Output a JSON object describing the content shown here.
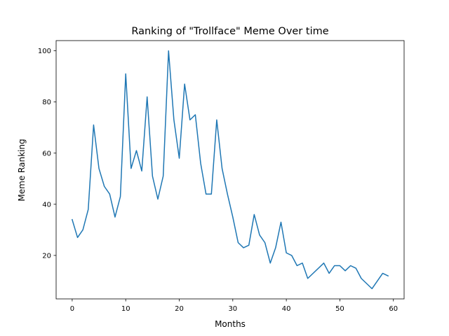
{
  "chart_data": {
    "type": "line",
    "title": "Ranking of \"Trollface\" Meme Over time",
    "xlabel": "Months",
    "ylabel": "Meme Ranking",
    "xlim": [
      -3,
      62
    ],
    "ylim": [
      3,
      104
    ],
    "xticks": [
      0,
      10,
      20,
      30,
      40,
      50,
      60
    ],
    "yticks": [
      20,
      40,
      60,
      80,
      100
    ],
    "grid": false,
    "line_color": "#1f77b4",
    "series": [
      {
        "x": [
          0,
          1,
          2,
          3,
          4,
          5,
          6,
          7,
          8,
          9,
          10,
          11,
          12,
          13,
          14,
          15,
          16,
          17,
          18,
          19,
          20,
          21,
          22,
          23,
          24,
          25,
          26,
          27,
          28,
          29,
          30,
          31,
          32,
          33,
          34,
          35,
          36,
          37,
          38,
          39,
          40,
          41,
          42,
          43,
          44,
          47,
          48,
          49,
          50,
          51,
          52,
          53,
          54,
          56,
          58,
          59
        ],
        "values": [
          34,
          27,
          30,
          38,
          71,
          54,
          47,
          44,
          35,
          43,
          91,
          54,
          61,
          53,
          82,
          51,
          42,
          51,
          100,
          73,
          58,
          87,
          73,
          75,
          56,
          44,
          44,
          73,
          54,
          44,
          35,
          25,
          23,
          24,
          36,
          28,
          25,
          17,
          23,
          33,
          21,
          20,
          16,
          17,
          11,
          17,
          13,
          16,
          16,
          14,
          16,
          15,
          11,
          7,
          13,
          12
        ]
      }
    ]
  }
}
